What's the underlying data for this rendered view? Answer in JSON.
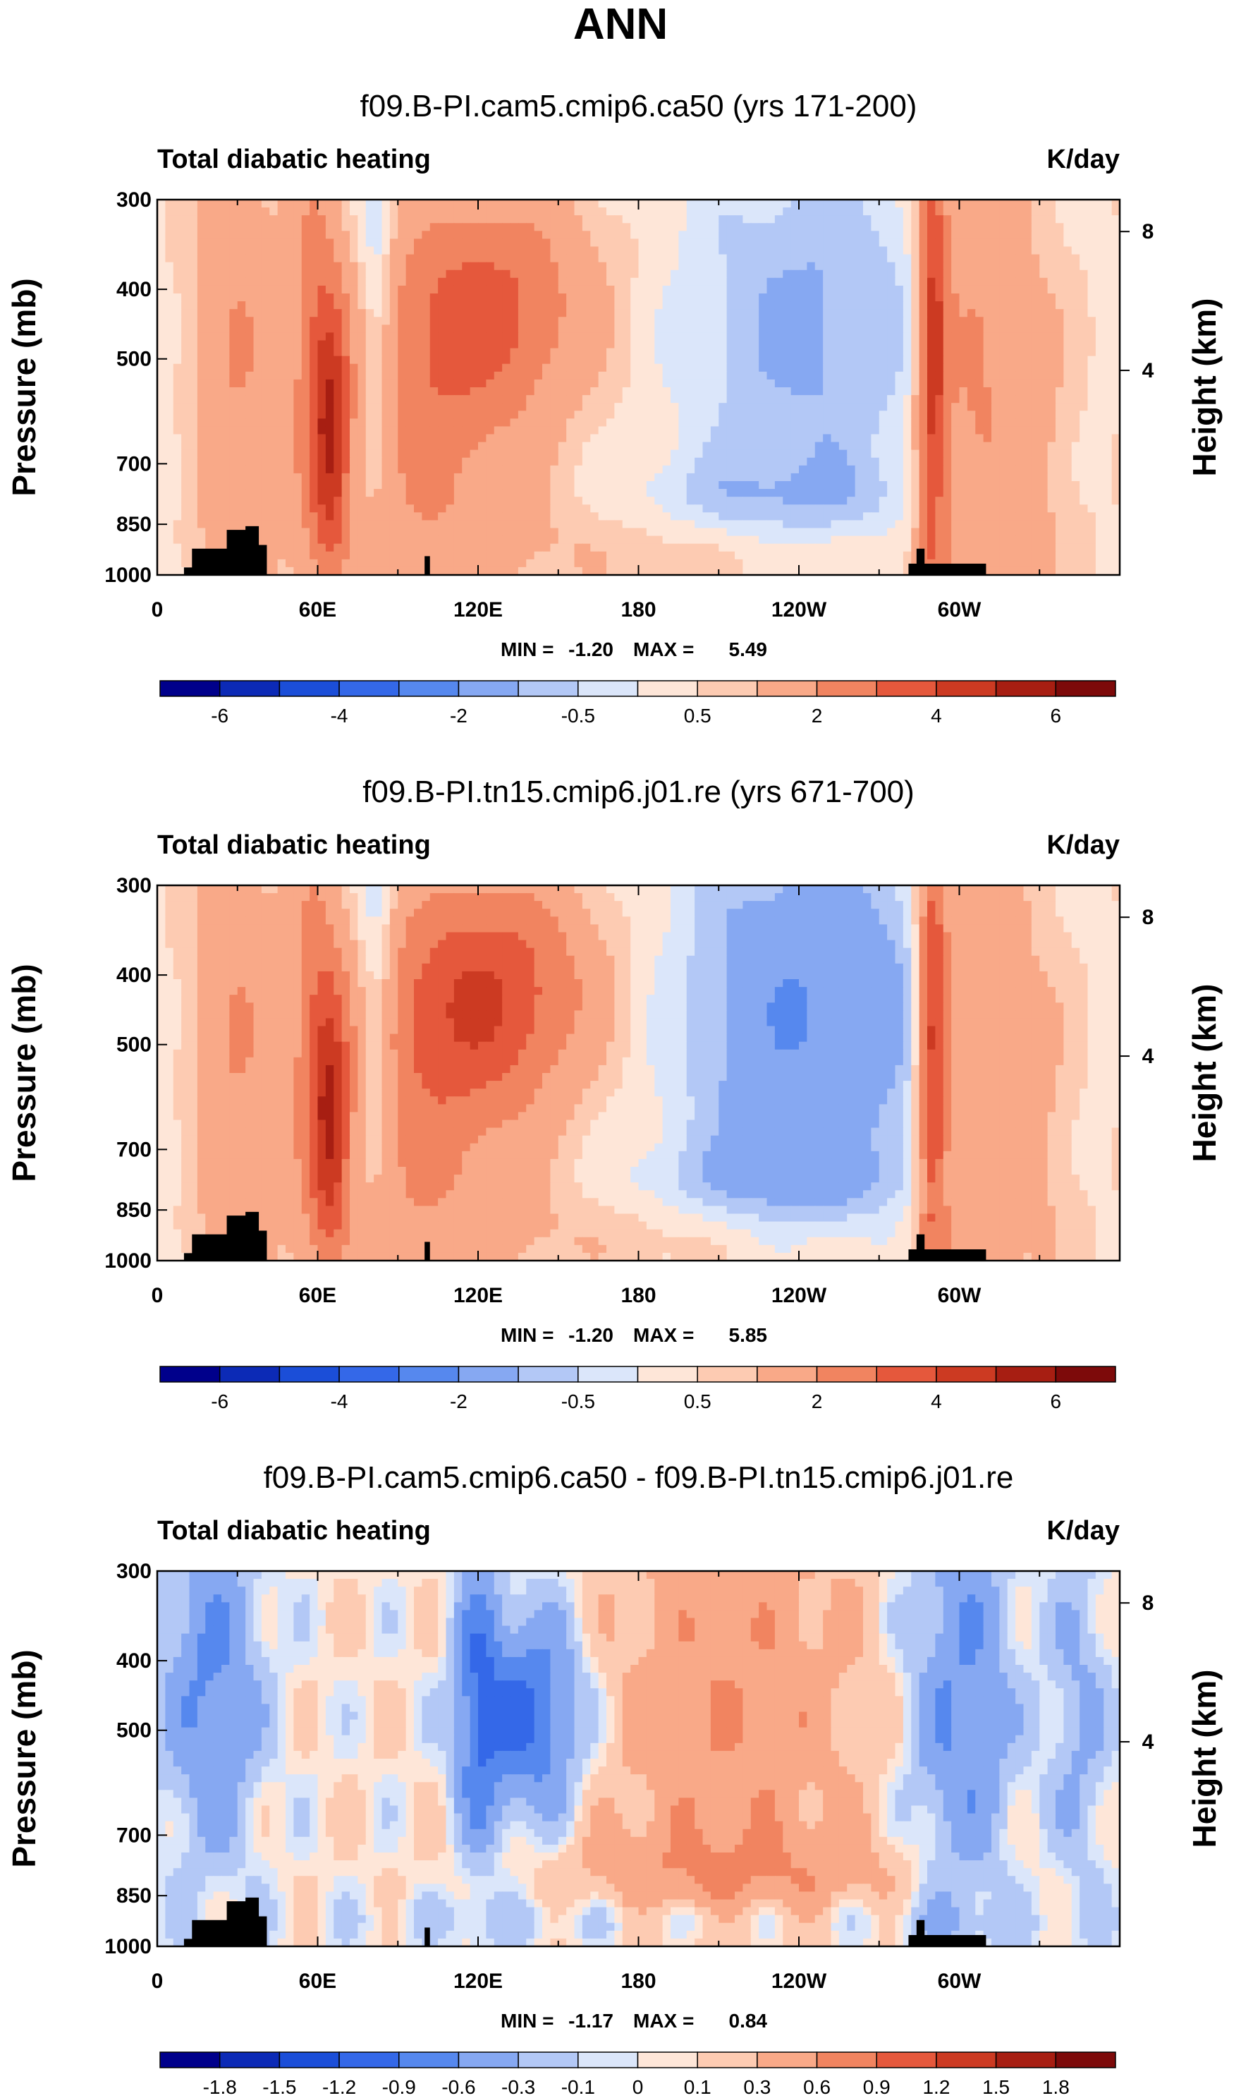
{
  "title": "ANN",
  "colors": {
    "cmap": [
      "#00008b",
      "#0c2ab6",
      "#1b4ed8",
      "#3468e8",
      "#5688ee",
      "#86a8f2",
      "#b3c8f6",
      "#dbe6fa",
      "#fee6d8",
      "#fdcbb2",
      "#f9a988",
      "#f18460",
      "#e5583c",
      "#cc3a22",
      "#a71e12",
      "#7d0a0a"
    ]
  },
  "chart_data": [
    {
      "type": "contour",
      "title": "f09.B-PI.cam5.cmip6.ca50 (yrs 171-200)",
      "left_label": "Total diabatic heating",
      "right_label": "K/day",
      "xlabel": "",
      "ylabel": "Pressure (mb)",
      "y2label": "Height (km)",
      "x_ticks": [
        "0",
        "60E",
        "120E",
        "180",
        "120W",
        "60W"
      ],
      "y_ticks": [
        "300",
        "400",
        "500",
        "700",
        "850",
        "1000"
      ],
      "y2_ticks": [
        "8",
        "4"
      ],
      "xlim": [
        0,
        360
      ],
      "ylim": [
        1000,
        300
      ],
      "min_label": "MIN =",
      "min_value": "-1.20",
      "max_label": "MAX =",
      "max_value": "5.49",
      "levels": [
        "-6",
        "-4",
        "-2",
        "-0.5",
        "0.5",
        "2",
        "4",
        "6"
      ]
    },
    {
      "type": "contour",
      "title": "f09.B-PI.tn15.cmip6.j01.re (yrs 671-700)",
      "left_label": "Total diabatic heating",
      "right_label": "K/day",
      "xlabel": "",
      "ylabel": "Pressure (mb)",
      "y2label": "Height (km)",
      "x_ticks": [
        "0",
        "60E",
        "120E",
        "180",
        "120W",
        "60W"
      ],
      "y_ticks": [
        "300",
        "400",
        "500",
        "700",
        "850",
        "1000"
      ],
      "y2_ticks": [
        "8",
        "4"
      ],
      "xlim": [
        0,
        360
      ],
      "ylim": [
        1000,
        300
      ],
      "min_label": "MIN =",
      "min_value": "-1.20",
      "max_label": "MAX =",
      "max_value": "5.85",
      "levels": [
        "-6",
        "-4",
        "-2",
        "-0.5",
        "0.5",
        "2",
        "4",
        "6"
      ]
    },
    {
      "type": "contour",
      "title": "f09.B-PI.cam5.cmip6.ca50 - f09.B-PI.tn15.cmip6.j01.re",
      "left_label": "Total diabatic heating",
      "right_label": "K/day",
      "xlabel": "",
      "ylabel": "Pressure (mb)",
      "y2label": "Height (km)",
      "x_ticks": [
        "0",
        "60E",
        "120E",
        "180",
        "120W",
        "60W"
      ],
      "y_ticks": [
        "300",
        "400",
        "500",
        "700",
        "850",
        "1000"
      ],
      "y2_ticks": [
        "8",
        "4"
      ],
      "xlim": [
        0,
        360
      ],
      "ylim": [
        1000,
        300
      ],
      "min_label": "MIN =",
      "min_value": "-1.17",
      "max_label": "MAX =",
      "max_value": "0.84",
      "levels": [
        "-1.8",
        "-1.5",
        "-1.2",
        "-0.9",
        "-0.6",
        "-0.3",
        "-0.1",
        "0",
        "0.1",
        "0.3",
        "0.6",
        "0.9",
        "1.2",
        "1.5",
        "1.8"
      ]
    }
  ]
}
